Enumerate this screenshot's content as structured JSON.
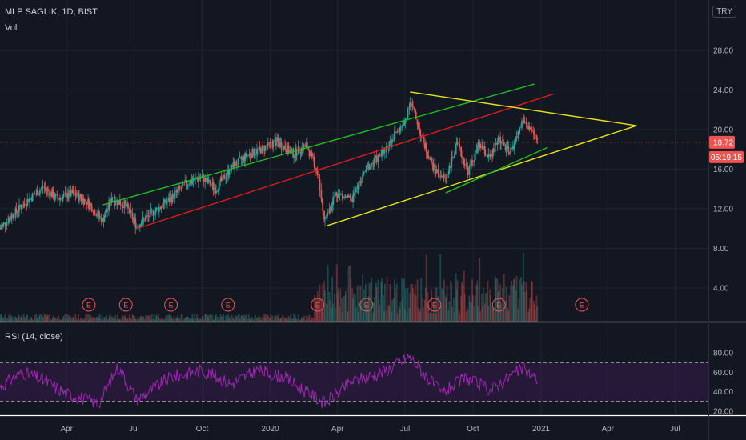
{
  "header": {
    "symbol": "MLP SAGLIK, 1D, BIST",
    "volume_label": "Vol",
    "rsi_label": "RSI (14, close)",
    "currency": "TRY",
    "scale_mark": "3"
  },
  "colors": {
    "background": "#131722",
    "grid": "#1f2430",
    "up": "#26a69a",
    "down": "#ef5350",
    "green_channel": "#1fbf1f",
    "red_channel": "#e01b1b",
    "yellow_lines": "#e5e51c",
    "rsi_line": "#9c27b0",
    "rsi_band": "#4a1a5e"
  },
  "chart_data": {
    "type": "candlestick",
    "x_ticks": [
      "Apr",
      "Jul",
      "Oct",
      "2020",
      "Apr",
      "Jul",
      "Oct",
      "2021",
      "Apr",
      "Jul"
    ],
    "x_range": [
      "2019-01-01",
      "2021-08-15"
    ],
    "price_axis": {
      "range": [
        0,
        30
      ],
      "ticks": [
        "28.00",
        "24.00",
        "20.00",
        "16.00",
        "12.00",
        "8.00",
        "4.00"
      ]
    },
    "last_price": "18.72",
    "countdown": "05:19:15",
    "price_path": [
      [
        "2019-01-01",
        10.0
      ],
      [
        "2019-01-20",
        11.5
      ],
      [
        "2019-02-10",
        13.0
      ],
      [
        "2019-03-01",
        14.2
      ],
      [
        "2019-03-20",
        13.0
      ],
      [
        "2019-04-10",
        13.6
      ],
      [
        "2019-05-01",
        12.6
      ],
      [
        "2019-05-20",
        10.8
      ],
      [
        "2019-06-01",
        13.0
      ],
      [
        "2019-06-20",
        12.4
      ],
      [
        "2019-07-05",
        10.3
      ],
      [
        "2019-07-25",
        11.5
      ],
      [
        "2019-08-20",
        13.0
      ],
      [
        "2019-09-10",
        14.6
      ],
      [
        "2019-10-01",
        15.2
      ],
      [
        "2019-10-20",
        14.0
      ],
      [
        "2019-11-10",
        16.2
      ],
      [
        "2019-12-01",
        17.4
      ],
      [
        "2019-12-20",
        18.0
      ],
      [
        "2020-01-10",
        18.8
      ],
      [
        "2020-02-01",
        17.6
      ],
      [
        "2020-02-20",
        18.4
      ],
      [
        "2020-03-05",
        15.8
      ],
      [
        "2020-03-15",
        10.8
      ],
      [
        "2020-03-30",
        13.6
      ],
      [
        "2020-04-20",
        12.8
      ],
      [
        "2020-05-10",
        16.0
      ],
      [
        "2020-06-01",
        17.6
      ],
      [
        "2020-06-20",
        19.8
      ],
      [
        "2020-07-01",
        20.5
      ],
      [
        "2020-07-08",
        23.0
      ],
      [
        "2020-07-15",
        21.5
      ],
      [
        "2020-07-25",
        19.0
      ],
      [
        "2020-08-10",
        16.0
      ],
      [
        "2020-08-25",
        15.0
      ],
      [
        "2020-09-10",
        18.5
      ],
      [
        "2020-09-25",
        15.8
      ],
      [
        "2020-10-10",
        18.5
      ],
      [
        "2020-10-25",
        17.0
      ],
      [
        "2020-11-05",
        19.2
      ],
      [
        "2020-11-20",
        17.5
      ],
      [
        "2020-12-01",
        19.5
      ],
      [
        "2020-12-08",
        21.0
      ],
      [
        "2020-12-20",
        19.8
      ],
      [
        "2020-12-28",
        18.72
      ]
    ],
    "trend_lines": [
      {
        "name": "green-upper-channel",
        "color": "green",
        "from": [
          "2019-05-20",
          12.4
        ],
        "to": [
          "2020-12-23",
          24.6
        ]
      },
      {
        "name": "red-lower-channel",
        "color": "red",
        "from": [
          "2019-07-05",
          10.0
        ],
        "to": [
          "2021-01-18",
          23.6
        ]
      },
      {
        "name": "yellow-upper-wedge",
        "color": "yellow",
        "from": [
          "2020-07-08",
          23.8
        ],
        "to": [
          "2021-05-10",
          20.4
        ]
      },
      {
        "name": "yellow-lower-wedge",
        "color": "yellow",
        "from": [
          "2020-03-18",
          10.3
        ],
        "to": [
          "2021-05-10",
          20.4
        ]
      },
      {
        "name": "green-lower-support",
        "color": "green",
        "from": [
          "2020-08-25",
          13.6
        ],
        "to": [
          "2021-01-10",
          18.2
        ]
      }
    ],
    "earnings_markers": [
      "2019-05-01",
      "2019-06-20",
      "2019-08-20",
      "2019-11-05",
      "2020-03-05",
      "2020-05-10",
      "2020-08-10",
      "2020-11-05",
      "2021-02-25"
    ],
    "earnings_label": "E",
    "rsi": {
      "axis_ticks": [
        "80.00",
        "60.00",
        "40.00",
        "20.00"
      ],
      "range": [
        15,
        85
      ],
      "upper_band": 70,
      "lower_band": 30,
      "path": [
        [
          "2019-01-01",
          45
        ],
        [
          "2019-02-01",
          60
        ],
        [
          "2019-03-01",
          52
        ],
        [
          "2019-04-01",
          38
        ],
        [
          "2019-05-15",
          28
        ],
        [
          "2019-06-10",
          66
        ],
        [
          "2019-07-05",
          32
        ],
        [
          "2019-08-20",
          55
        ],
        [
          "2019-10-01",
          62
        ],
        [
          "2019-11-10",
          48
        ],
        [
          "2019-12-15",
          62
        ],
        [
          "2020-01-20",
          55
        ],
        [
          "2020-03-15",
          28
        ],
        [
          "2020-04-20",
          50
        ],
        [
          "2020-06-01",
          60
        ],
        [
          "2020-07-08",
          76
        ],
        [
          "2020-08-20",
          38
        ],
        [
          "2020-09-20",
          54
        ],
        [
          "2020-10-25",
          42
        ],
        [
          "2020-11-25",
          58
        ],
        [
          "2020-12-08",
          64
        ],
        [
          "2020-12-28",
          52
        ]
      ]
    }
  }
}
